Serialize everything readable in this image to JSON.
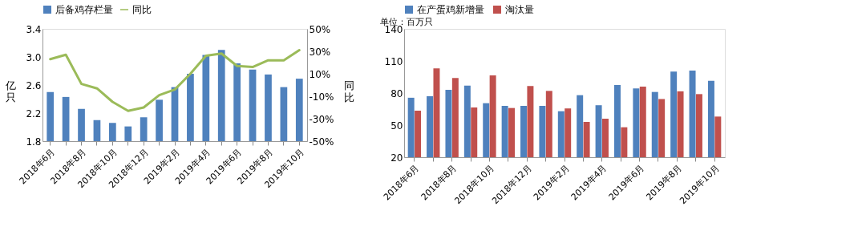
{
  "chart_data": [
    {
      "type": "bar",
      "categories": [
        "2018年6月",
        null,
        "2018年8月",
        null,
        "2018年10月",
        null,
        "2018年12月",
        null,
        "2019年2月",
        null,
        "2019年4月",
        null,
        "2019年6月",
        null,
        "2019年8月",
        null,
        "2019年10月"
      ],
      "series": [
        {
          "name": "后备鸡存栏量",
          "color": "#4f81bd",
          "values": [
            2.5,
            2.43,
            2.26,
            2.1,
            2.06,
            2.01,
            2.14,
            2.39,
            2.57,
            2.76,
            3.03,
            3.1,
            2.91,
            2.82,
            2.75,
            2.57,
            2.69
          ]
        },
        {
          "name": "同比",
          "type": "line",
          "axis": "y2",
          "color": "#9bbb59",
          "values": [
            23,
            27,
            1,
            -3,
            -15,
            -23,
            -20,
            -9,
            -4,
            10,
            26,
            28,
            17,
            16,
            22,
            22,
            31
          ]
        }
      ],
      "ylabel": "亿只",
      "y2label": "同比",
      "ylim": [
        1.8,
        3.4
      ],
      "yticks": [
        1.8,
        2.2,
        2.6,
        {
          "value": 3,
          "label": "3.0"
        },
        3.4
      ],
      "y2lim": [
        -50,
        50
      ],
      "y2ticks": [
        {
          "value": -50,
          "label": "-50%"
        },
        {
          "value": -30,
          "label": "-30%"
        },
        {
          "value": -10,
          "label": "-10%"
        },
        {
          "value": 10,
          "label": "10%"
        },
        {
          "value": 30,
          "label": "30%"
        },
        {
          "value": 50,
          "label": "50%"
        }
      ],
      "legend": "top",
      "grid": false
    },
    {
      "type": "bar",
      "categories": [
        "2018年6月",
        null,
        "2018年8月",
        null,
        "2018年10月",
        null,
        "2018年12月",
        null,
        "2019年2月",
        null,
        "2019年4月",
        null,
        "2019年6月",
        null,
        "2019年8月",
        null,
        "2019年10月"
      ],
      "series": [
        {
          "name": "在产蛋鸡新增量",
          "color": "#4f81bd",
          "values": [
            75.6,
            77,
            83,
            87,
            70.5,
            68,
            68,
            68,
            63,
            78,
            68.6,
            87.5,
            84.4,
            81,
            100,
            101,
            91.4
          ]
        },
        {
          "name": "淘汰量",
          "color": "#c0504d",
          "values": [
            63.5,
            103,
            94,
            66.5,
            96.5,
            66,
            86.5,
            82,
            65.6,
            53,
            56,
            48,
            86,
            74.4,
            81.6,
            79,
            58
          ]
        }
      ],
      "ylim": [
        20,
        140
      ],
      "yticks": [
        20,
        50,
        80,
        110,
        140
      ],
      "annotations": [
        "单位：百万只"
      ],
      "legend": "top",
      "grid": false
    }
  ]
}
